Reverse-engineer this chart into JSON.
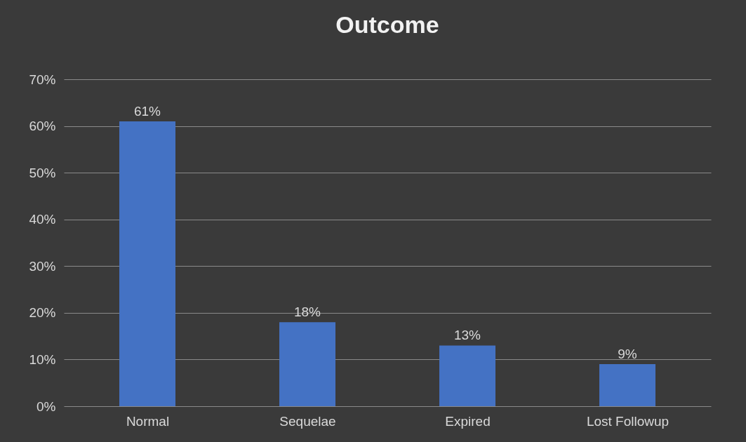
{
  "chart_data": {
    "type": "bar",
    "title": "Outcome",
    "categories": [
      "Normal",
      "Sequelae",
      "Expired",
      "Lost Followup"
    ],
    "values": [
      61,
      18,
      13,
      9
    ],
    "color": "#4472c4",
    "value_labels": [
      "61%",
      "18%",
      "13%",
      "9%"
    ],
    "ylim": [
      0,
      70
    ],
    "yticks": [
      {
        "value": 0,
        "label": "0%"
      },
      {
        "value": 10,
        "label": "10%"
      },
      {
        "value": 20,
        "label": "20%"
      },
      {
        "value": 30,
        "label": "30%"
      },
      {
        "value": 40,
        "label": "40%"
      },
      {
        "value": 50,
        "label": "50%"
      },
      {
        "value": 60,
        "label": "60%"
      },
      {
        "value": 70,
        "label": "70%"
      }
    ],
    "grid": "y"
  }
}
